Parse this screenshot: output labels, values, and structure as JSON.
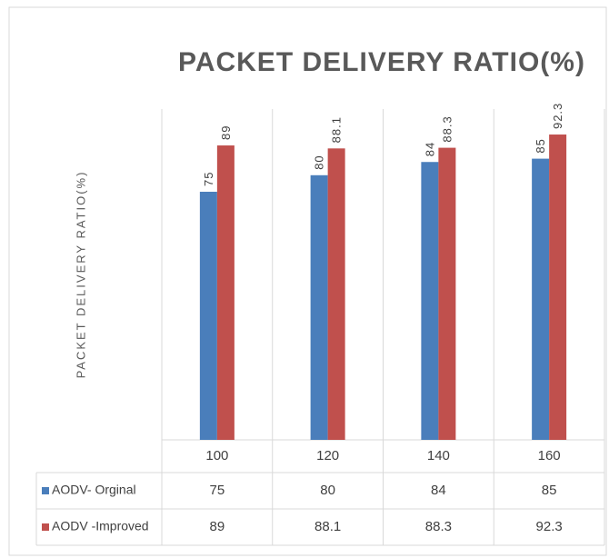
{
  "chart_data": {
    "type": "bar",
    "title": "PACKET DELIVERY RATIO(%)",
    "y_label": "PACKET DELIVERY RATIO(%)",
    "categories": [
      "100",
      "120",
      "140",
      "160"
    ],
    "series": [
      {
        "name": "AODV- Orginal",
        "color": "#4a7ebb",
        "values": [
          75,
          80,
          84,
          85
        ]
      },
      {
        "name": "AODV -Improved",
        "color": "#c0504d",
        "values": [
          89,
          88.1,
          88.3,
          92.3
        ]
      }
    ],
    "ylim": [
      0,
      100
    ]
  }
}
